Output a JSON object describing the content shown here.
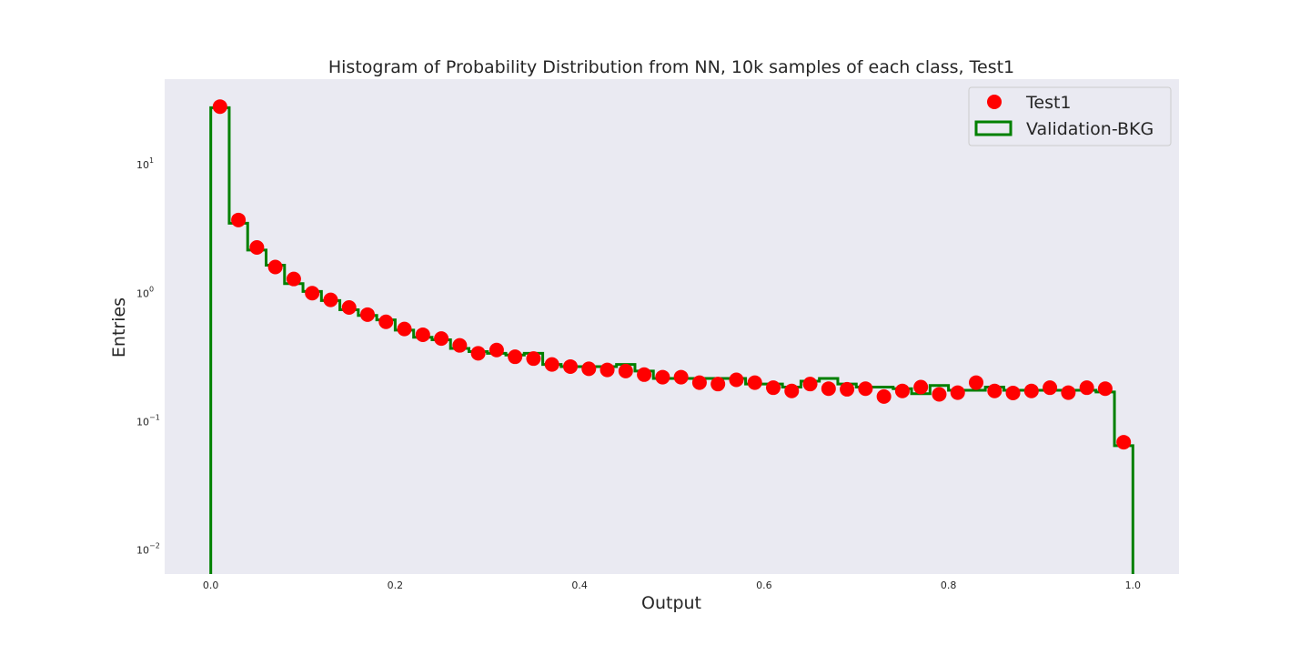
{
  "chart_data": {
    "type": "histogram",
    "title": "Histogram of Probability Distribution from NN, 10k samples of each class, Test1",
    "xlabel": "Output",
    "ylabel": "Entries",
    "xlim": [
      -0.05,
      1.05
    ],
    "ylim": [
      0.0063,
      45
    ],
    "yscale": "log",
    "grid": false,
    "legend_position": "top-right",
    "x_ticks": [
      {
        "value": 0.0,
        "label": "0.0"
      },
      {
        "value": 0.2,
        "label": "0.2"
      },
      {
        "value": 0.4,
        "label": "0.4"
      },
      {
        "value": 0.6,
        "label": "0.6"
      },
      {
        "value": 0.8,
        "label": "0.8"
      },
      {
        "value": 1.0,
        "label": "1.0"
      }
    ],
    "y_ticks": [
      {
        "value": 10,
        "base": "10",
        "exp": "1"
      },
      {
        "value": 1,
        "base": "10",
        "exp": "0"
      },
      {
        "value": 0.1,
        "base": "10",
        "exp": "−1"
      },
      {
        "value": 0.01,
        "base": "10",
        "exp": "−2"
      }
    ],
    "bin_edges": [
      0.0,
      0.02,
      0.04,
      0.06,
      0.08,
      0.1,
      0.12,
      0.14,
      0.16,
      0.18,
      0.2,
      0.22,
      0.24,
      0.26,
      0.28,
      0.3,
      0.32,
      0.34,
      0.36,
      0.38,
      0.4,
      0.42,
      0.44,
      0.46,
      0.48,
      0.5,
      0.52,
      0.54,
      0.56,
      0.58,
      0.6,
      0.62,
      0.64,
      0.66,
      0.68,
      0.7,
      0.72,
      0.74,
      0.76,
      0.78,
      0.8,
      0.82,
      0.84,
      0.86,
      0.88,
      0.9,
      0.92,
      0.94,
      0.96,
      0.98,
      1.0
    ],
    "series": [
      {
        "name": "Test1",
        "kind": "points",
        "color": "#ff0000",
        "x": [
          0.01,
          0.03,
          0.05,
          0.07,
          0.09,
          0.11,
          0.13,
          0.15,
          0.17,
          0.19,
          0.21,
          0.23,
          0.25,
          0.27,
          0.29,
          0.31,
          0.33,
          0.35,
          0.37,
          0.39,
          0.41,
          0.43,
          0.45,
          0.47,
          0.49,
          0.51,
          0.53,
          0.55,
          0.57,
          0.59,
          0.61,
          0.63,
          0.65,
          0.67,
          0.69,
          0.71,
          0.73,
          0.75,
          0.77,
          0.79,
          0.81,
          0.83,
          0.85,
          0.87,
          0.89,
          0.91,
          0.93,
          0.95,
          0.97,
          0.99
        ],
        "values": [
          27.5,
          3.6,
          2.2,
          1.55,
          1.25,
          0.97,
          0.86,
          0.75,
          0.66,
          0.58,
          0.51,
          0.46,
          0.43,
          0.38,
          0.33,
          0.35,
          0.31,
          0.3,
          0.27,
          0.26,
          0.25,
          0.245,
          0.24,
          0.225,
          0.215,
          0.215,
          0.195,
          0.19,
          0.205,
          0.195,
          0.178,
          0.168,
          0.19,
          0.175,
          0.173,
          0.175,
          0.152,
          0.168,
          0.18,
          0.158,
          0.163,
          0.195,
          0.168,
          0.162,
          0.168,
          0.178,
          0.163,
          0.178,
          0.175,
          0.067
        ]
      },
      {
        "name": "Validation-BKG",
        "kind": "step",
        "color": "#008000",
        "values": [
          27.0,
          3.4,
          2.1,
          1.6,
          1.15,
          1.0,
          0.85,
          0.72,
          0.65,
          0.6,
          0.5,
          0.44,
          0.42,
          0.36,
          0.34,
          0.33,
          0.32,
          0.33,
          0.27,
          0.26,
          0.26,
          0.26,
          0.27,
          0.24,
          0.21,
          0.21,
          0.21,
          0.21,
          0.21,
          0.19,
          0.19,
          0.18,
          0.2,
          0.21,
          0.19,
          0.18,
          0.18,
          0.175,
          0.16,
          0.185,
          0.17,
          0.17,
          0.18,
          0.17,
          0.17,
          0.17,
          0.17,
          0.17,
          0.165,
          0.063
        ]
      }
    ]
  }
}
